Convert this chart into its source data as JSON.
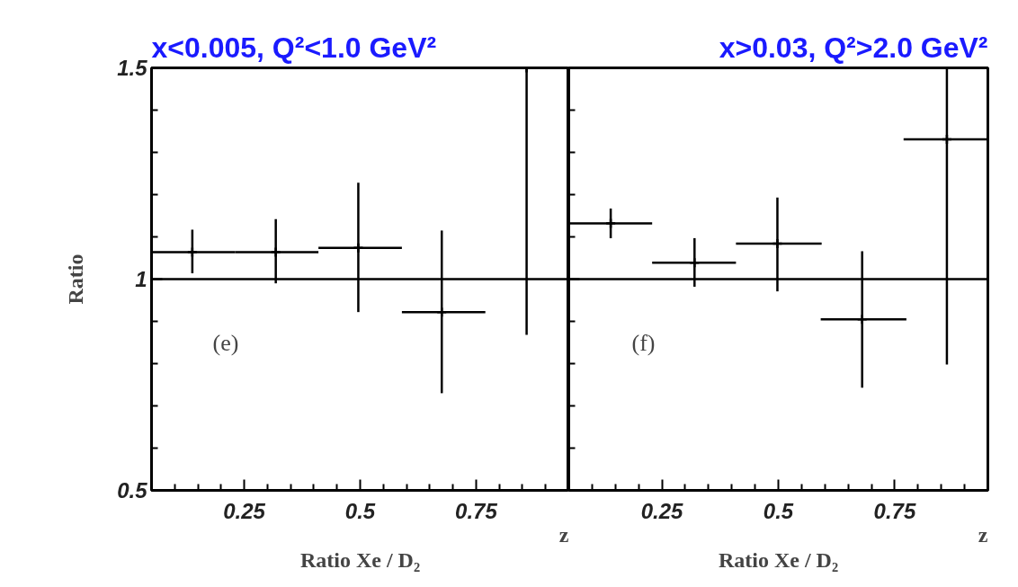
{
  "chart_data": [
    {
      "type": "scatter",
      "title": "x<0.005, Q²<1.0 GeV²",
      "xlabel": "z",
      "ylabel": "Ratio",
      "marker": "cross",
      "grid": false,
      "x": [
        0.138,
        0.318,
        0.496,
        0.676,
        0.859
      ],
      "values": [
        1.064,
        1.064,
        1.074,
        0.922,
        1.5
      ],
      "errors": [
        [
          1.014,
          1.117
        ],
        [
          0.99,
          1.142
        ],
        [
          0.922,
          1.228
        ],
        [
          0.73,
          1.115
        ],
        [
          0.868,
          1.5
        ]
      ],
      "xerrors": [
        [
          0.05,
          0.23
        ],
        [
          0.23,
          0.41
        ],
        [
          0.41,
          0.59
        ],
        [
          0.59,
          0.77
        ],
        [
          0.77,
          0.95
        ]
      ],
      "xlim": [
        0.05,
        0.95
      ],
      "xticks": [
        {
          "value": 0.1,
          "label": null
        },
        {
          "value": 0.15,
          "label": null
        },
        {
          "value": 0.2,
          "label": null
        },
        0.25,
        {
          "value": 0.3,
          "label": null
        },
        {
          "value": 0.35,
          "label": null
        },
        {
          "value": 0.4,
          "label": null
        },
        {
          "value": 0.45,
          "label": null
        },
        0.5,
        {
          "value": 0.55,
          "label": null
        },
        {
          "value": 0.6,
          "label": null
        },
        {
          "value": 0.65,
          "label": null
        },
        {
          "value": 0.7,
          "label": null
        },
        0.75,
        {
          "value": 0.8,
          "label": null
        },
        {
          "value": 0.85,
          "label": null
        },
        {
          "value": 0.9,
          "label": null
        }
      ],
      "ylim": [
        0.5,
        1.5
      ],
      "yticks": [
        0.5,
        {
          "value": 0.6,
          "label": null
        },
        {
          "value": 0.7,
          "label": null
        },
        {
          "value": 0.8,
          "label": null
        },
        {
          "value": 0.9,
          "label": null
        },
        1,
        {
          "value": 1.1,
          "label": null
        },
        {
          "value": 1.2,
          "label": null
        },
        {
          "value": 1.3,
          "label": null
        },
        {
          "value": 1.4,
          "label": null
        },
        1.5
      ],
      "ref_lines": [
        {
          "axis": "y",
          "value": 1,
          "label": null
        }
      ],
      "annotations": [
        "(e)",
        "Ratio Xe / D₂"
      ]
    },
    {
      "type": "scatter",
      "title": "x>0.03, Q²>2.0 GeV²",
      "xlabel": "z",
      "marker": "cross",
      "grid": false,
      "tick_labels": "x",
      "x": [
        0.14,
        0.32,
        0.498,
        0.68,
        0.862
      ],
      "values": [
        1.132,
        1.039,
        1.084,
        0.905,
        1.331
      ],
      "errors": [
        [
          1.097,
          1.167
        ],
        [
          0.982,
          1.097
        ],
        [
          0.971,
          1.193
        ],
        [
          0.743,
          1.066
        ],
        [
          0.798,
          1.5
        ]
      ],
      "xerrors": [
        [
          0.05,
          0.229
        ],
        [
          0.229,
          0.409
        ],
        [
          0.409,
          0.593
        ],
        [
          0.591,
          0.775
        ],
        [
          0.769,
          0.95
        ]
      ],
      "xlim": [
        0.05,
        0.95
      ],
      "xticks": [
        {
          "value": 0.1,
          "label": null
        },
        {
          "value": 0.15,
          "label": null
        },
        {
          "value": 0.2,
          "label": null
        },
        0.25,
        {
          "value": 0.3,
          "label": null
        },
        {
          "value": 0.35,
          "label": null
        },
        {
          "value": 0.4,
          "label": null
        },
        {
          "value": 0.45,
          "label": null
        },
        0.5,
        {
          "value": 0.55,
          "label": null
        },
        {
          "value": 0.6,
          "label": null
        },
        {
          "value": 0.65,
          "label": null
        },
        {
          "value": 0.7,
          "label": null
        },
        0.75,
        {
          "value": 0.8,
          "label": null
        },
        {
          "value": 0.85,
          "label": null
        },
        {
          "value": 0.9,
          "label": null
        }
      ],
      "ylim": [
        0.5,
        1.5
      ],
      "yticks": [
        0.5,
        {
          "value": 0.6,
          "label": null
        },
        {
          "value": 0.7,
          "label": null
        },
        {
          "value": 0.8,
          "label": null
        },
        {
          "value": 0.9,
          "label": null
        },
        1,
        {
          "value": 1.1,
          "label": null
        },
        {
          "value": 1.2,
          "label": null
        },
        {
          "value": 1.3,
          "label": null
        },
        {
          "value": 1.4,
          "label": null
        },
        1.5
      ],
      "ref_lines": [
        {
          "axis": "y",
          "value": 1,
          "label": null
        }
      ],
      "annotations": [
        "(f)",
        "Ratio Xe / D₂"
      ]
    }
  ]
}
